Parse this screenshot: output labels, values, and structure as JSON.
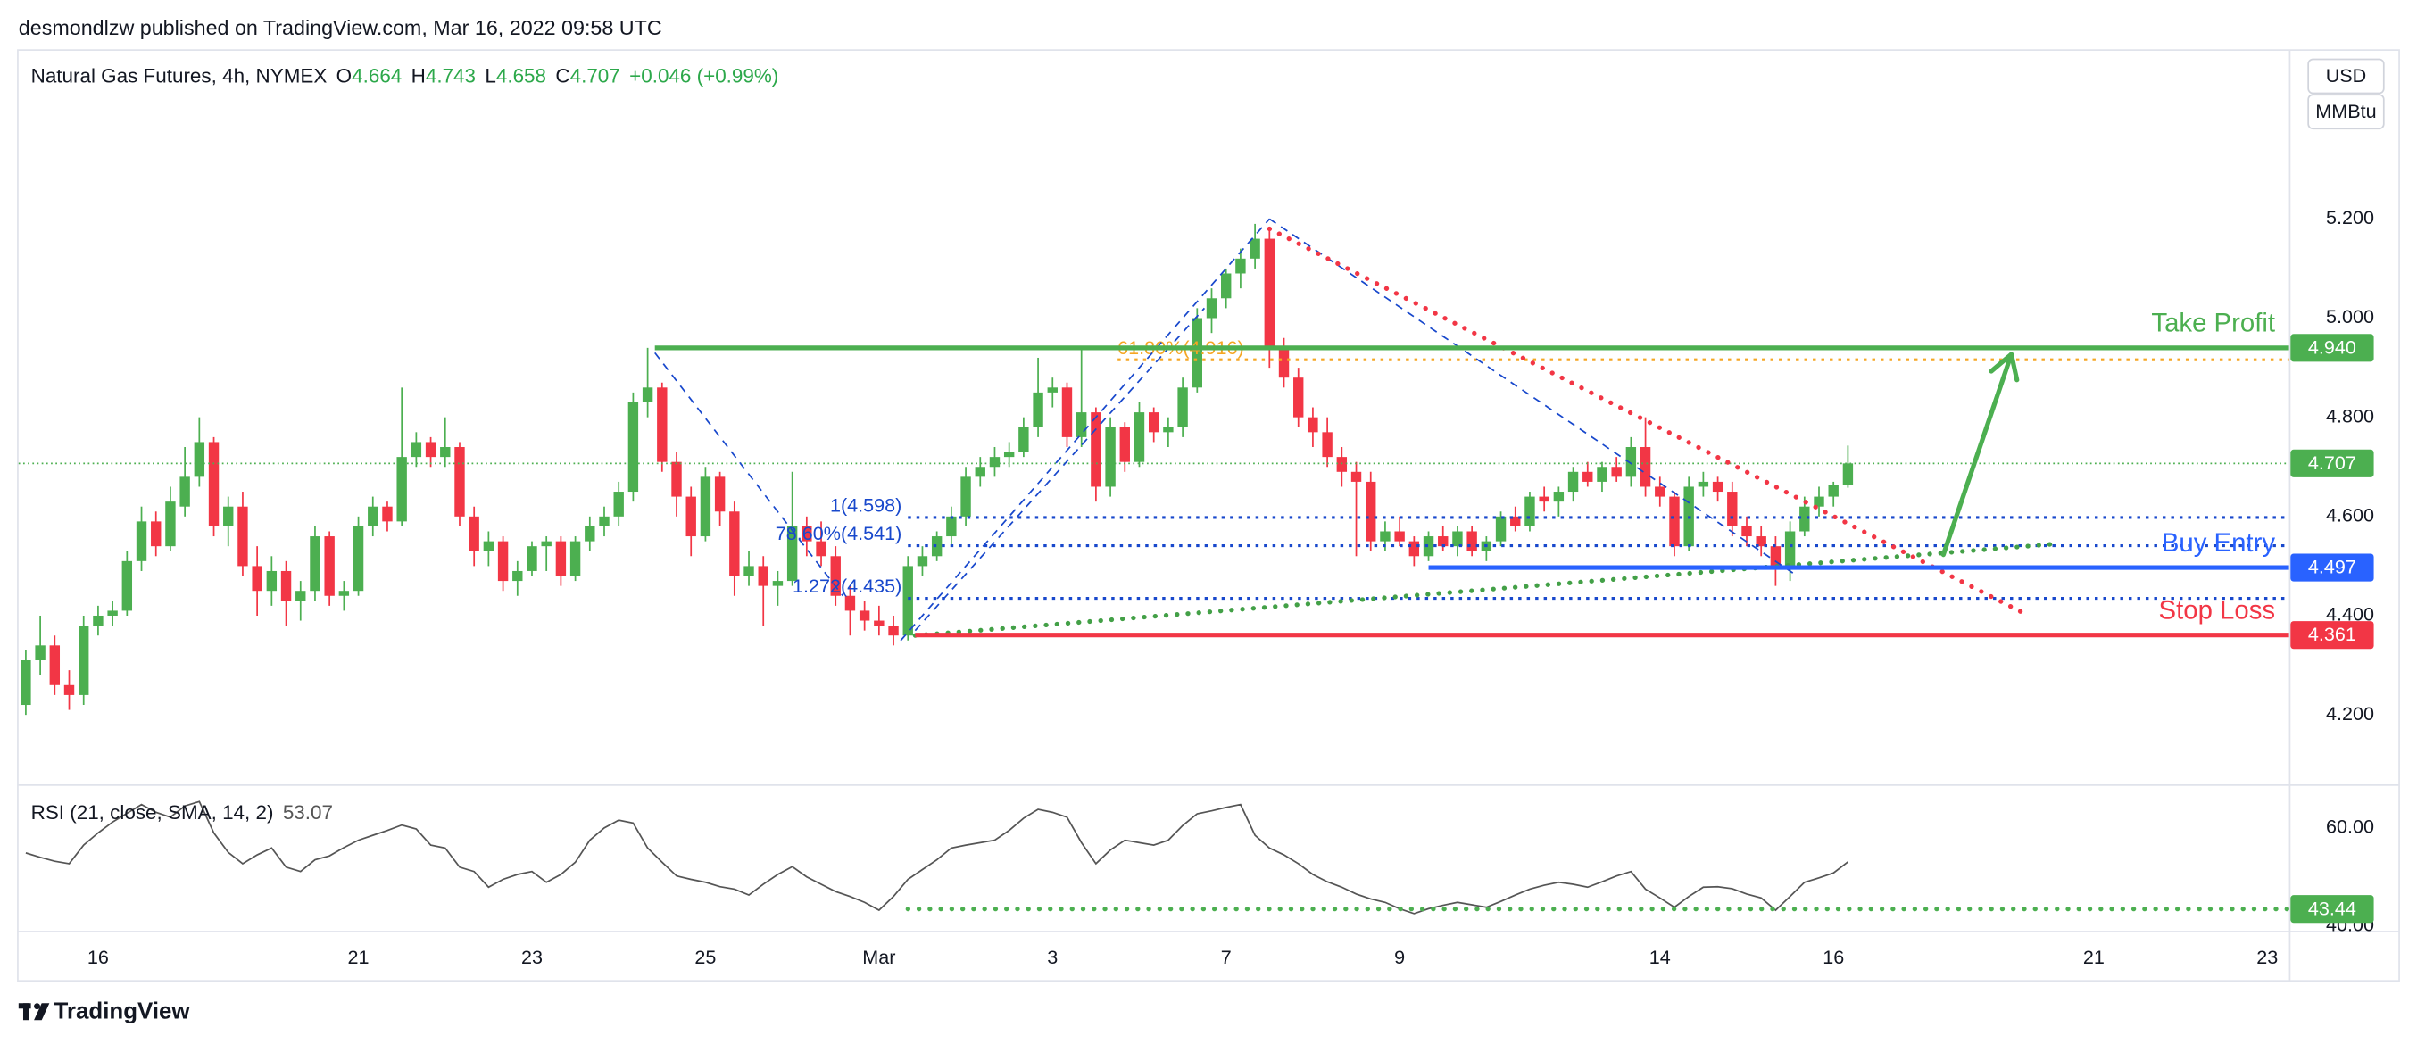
{
  "header": {
    "published": "desmondlzw published on TradingView.com, Mar 16, 2022 09:58 UTC"
  },
  "chart_data": {
    "type": "candlestick",
    "title": "Natural Gas Futures, 4h, NYMEX",
    "ohlc_labels": [
      "O",
      "H",
      "L",
      "C"
    ],
    "change": "+0.046 (+0.99%)",
    "currency": [
      "USD",
      "MMBtu"
    ],
    "up_color": "#4caf50",
    "down_color": "#f23645",
    "categories": [
      null,
      null,
      null,
      null,
      null,
      "16",
      null,
      null,
      null,
      null,
      null,
      null,
      null,
      null,
      null,
      null,
      null,
      null,
      null,
      null,
      null,
      null,
      null,
      "21",
      null,
      null,
      null,
      null,
      null,
      null,
      null,
      null,
      null,
      null,
      null,
      "23",
      null,
      null,
      null,
      null,
      null,
      null,
      null,
      null,
      null,
      null,
      null,
      "25",
      null,
      null,
      null,
      null,
      null,
      null,
      null,
      null,
      null,
      null,
      null,
      "Mar",
      null,
      null,
      null,
      null,
      null,
      null,
      null,
      null,
      null,
      null,
      null,
      "3",
      null,
      null,
      null,
      null,
      null,
      null,
      null,
      null,
      null,
      null,
      null,
      "7",
      null,
      null,
      null,
      null,
      null,
      null,
      null,
      null,
      null,
      null,
      null,
      "9",
      null,
      null,
      null,
      null,
      null,
      null,
      null,
      null,
      null,
      null,
      null,
      null,
      null,
      null,
      null,
      null,
      null,
      "14",
      null,
      null,
      null,
      null,
      null,
      null,
      null,
      null,
      null,
      null,
      null,
      "16",
      null,
      null,
      null,
      null,
      null,
      null,
      null,
      null,
      null,
      null,
      null,
      null,
      null,
      null,
      null,
      null,
      null,
      "21",
      null,
      null,
      null,
      null,
      null,
      null,
      null,
      null,
      null,
      null,
      null,
      "23",
      null
    ],
    "ohlc": [
      [
        4.22,
        4.33,
        4.2,
        4.31
      ],
      [
        4.31,
        4.4,
        4.28,
        4.34
      ],
      [
        4.34,
        4.36,
        4.24,
        4.26
      ],
      [
        4.26,
        4.29,
        4.21,
        4.24
      ],
      [
        4.24,
        4.4,
        4.22,
        4.38
      ],
      [
        4.38,
        4.42,
        4.36,
        4.4
      ],
      [
        4.4,
        4.43,
        4.38,
        4.41
      ],
      [
        4.41,
        4.53,
        4.4,
        4.51
      ],
      [
        4.51,
        4.62,
        4.49,
        4.59
      ],
      [
        4.59,
        4.61,
        4.52,
        4.54
      ],
      [
        4.54,
        4.66,
        4.53,
        4.63
      ],
      [
        4.62,
        4.74,
        4.6,
        4.68
      ],
      [
        4.68,
        4.8,
        4.66,
        4.75
      ],
      [
        4.75,
        4.76,
        4.56,
        4.58
      ],
      [
        4.58,
        4.64,
        4.54,
        4.62
      ],
      [
        4.62,
        4.65,
        4.48,
        4.5
      ],
      [
        4.5,
        4.54,
        4.4,
        4.45
      ],
      [
        4.45,
        4.52,
        4.42,
        4.49
      ],
      [
        4.49,
        4.51,
        4.38,
        4.43
      ],
      [
        4.43,
        4.47,
        4.39,
        4.45
      ],
      [
        4.45,
        4.58,
        4.43,
        4.56
      ],
      [
        4.56,
        4.57,
        4.42,
        4.44
      ],
      [
        4.44,
        4.47,
        4.41,
        4.45
      ],
      [
        4.45,
        4.6,
        4.44,
        4.58
      ],
      [
        4.58,
        4.64,
        4.56,
        4.62
      ],
      [
        4.62,
        4.63,
        4.57,
        4.59
      ],
      [
        4.59,
        4.86,
        4.58,
        4.72
      ],
      [
        4.72,
        4.77,
        4.7,
        4.75
      ],
      [
        4.75,
        4.76,
        4.7,
        4.72
      ],
      [
        4.72,
        4.8,
        4.7,
        4.74
      ],
      [
        4.74,
        4.75,
        4.58,
        4.6
      ],
      [
        4.6,
        4.62,
        4.5,
        4.53
      ],
      [
        4.53,
        4.57,
        4.5,
        4.55
      ],
      [
        4.55,
        4.56,
        4.45,
        4.47
      ],
      [
        4.47,
        4.51,
        4.44,
        4.49
      ],
      [
        4.49,
        4.55,
        4.48,
        4.54
      ],
      [
        4.54,
        4.56,
        4.49,
        4.55
      ],
      [
        4.55,
        4.56,
        4.46,
        4.48
      ],
      [
        4.48,
        4.56,
        4.47,
        4.55
      ],
      [
        4.55,
        4.6,
        4.53,
        4.58
      ],
      [
        4.58,
        4.62,
        4.56,
        4.6
      ],
      [
        4.6,
        4.67,
        4.58,
        4.65
      ],
      [
        4.65,
        4.85,
        4.63,
        4.83
      ],
      [
        4.83,
        4.94,
        4.8,
        4.86
      ],
      [
        4.86,
        4.87,
        4.69,
        4.71
      ],
      [
        4.71,
        4.73,
        4.6,
        4.64
      ],
      [
        4.64,
        4.66,
        4.52,
        4.56
      ],
      [
        4.56,
        4.7,
        4.55,
        4.68
      ],
      [
        4.68,
        4.69,
        4.58,
        4.61
      ],
      [
        4.61,
        4.63,
        4.44,
        4.48
      ],
      [
        4.48,
        4.53,
        4.46,
        4.5
      ],
      [
        4.5,
        4.52,
        4.38,
        4.46
      ],
      [
        4.46,
        4.49,
        4.42,
        4.47
      ],
      [
        4.47,
        4.69,
        4.46,
        4.58
      ],
      [
        4.58,
        4.6,
        4.52,
        4.55
      ],
      [
        4.55,
        4.59,
        4.5,
        4.52
      ],
      [
        4.52,
        4.54,
        4.42,
        4.44
      ],
      [
        4.44,
        4.46,
        4.36,
        4.41
      ],
      [
        4.41,
        4.43,
        4.37,
        4.39
      ],
      [
        4.39,
        4.42,
        4.36,
        4.38
      ],
      [
        4.38,
        4.4,
        4.34,
        4.36
      ],
      [
        4.36,
        4.52,
        4.35,
        4.5
      ],
      [
        4.5,
        4.54,
        4.48,
        4.52
      ],
      [
        4.52,
        4.57,
        4.51,
        4.56
      ],
      [
        4.56,
        4.62,
        4.54,
        4.6
      ],
      [
        4.6,
        4.7,
        4.58,
        4.68
      ],
      [
        4.68,
        4.72,
        4.66,
        4.7
      ],
      [
        4.7,
        4.74,
        4.68,
        4.72
      ],
      [
        4.72,
        4.75,
        4.7,
        4.73
      ],
      [
        4.73,
        4.8,
        4.72,
        4.78
      ],
      [
        4.78,
        4.92,
        4.76,
        4.85
      ],
      [
        4.85,
        4.88,
        4.82,
        4.86
      ],
      [
        4.86,
        4.87,
        4.74,
        4.76
      ],
      [
        4.76,
        4.94,
        4.74,
        4.81
      ],
      [
        4.81,
        4.82,
        4.63,
        4.66
      ],
      [
        4.66,
        4.8,
        4.64,
        4.78
      ],
      [
        4.78,
        4.79,
        4.69,
        4.71
      ],
      [
        4.71,
        4.83,
        4.7,
        4.81
      ],
      [
        4.81,
        4.82,
        4.75,
        4.77
      ],
      [
        4.77,
        4.8,
        4.74,
        4.78
      ],
      [
        4.78,
        4.88,
        4.76,
        4.86
      ],
      [
        4.86,
        5.02,
        4.85,
        5.0
      ],
      [
        5.0,
        5.06,
        4.97,
        5.04
      ],
      [
        5.04,
        5.1,
        5.02,
        5.09
      ],
      [
        5.09,
        5.14,
        5.06,
        5.12
      ],
      [
        5.12,
        5.19,
        5.1,
        5.16
      ],
      [
        5.16,
        5.18,
        4.9,
        4.94
      ],
      [
        4.94,
        4.96,
        4.86,
        4.88
      ],
      [
        4.88,
        4.9,
        4.78,
        4.8
      ],
      [
        4.8,
        4.82,
        4.74,
        4.77
      ],
      [
        4.77,
        4.8,
        4.7,
        4.72
      ],
      [
        4.72,
        4.74,
        4.66,
        4.69
      ],
      [
        4.69,
        4.71,
        4.52,
        4.67
      ],
      [
        4.67,
        4.69,
        4.53,
        4.55
      ],
      [
        4.55,
        4.59,
        4.53,
        4.57
      ],
      [
        4.57,
        4.6,
        4.54,
        4.55
      ],
      [
        4.55,
        4.56,
        4.5,
        4.52
      ],
      [
        4.52,
        4.57,
        4.51,
        4.56
      ],
      [
        4.56,
        4.58,
        4.53,
        4.54
      ],
      [
        4.54,
        4.58,
        4.52,
        4.57
      ],
      [
        4.57,
        4.58,
        4.52,
        4.53
      ],
      [
        4.53,
        4.56,
        4.51,
        4.55
      ],
      [
        4.55,
        4.61,
        4.54,
        4.6
      ],
      [
        4.6,
        4.62,
        4.57,
        4.58
      ],
      [
        4.58,
        4.65,
        4.57,
        4.64
      ],
      [
        4.64,
        4.66,
        4.61,
        4.63
      ],
      [
        4.63,
        4.66,
        4.6,
        4.65
      ],
      [
        4.65,
        4.7,
        4.63,
        4.69
      ],
      [
        4.69,
        4.71,
        4.66,
        4.67
      ],
      [
        4.67,
        4.71,
        4.65,
        4.7
      ],
      [
        4.7,
        4.72,
        4.67,
        4.68
      ],
      [
        4.68,
        4.76,
        4.66,
        4.74
      ],
      [
        4.74,
        4.8,
        4.64,
        4.66
      ],
      [
        4.66,
        4.68,
        4.62,
        4.64
      ],
      [
        4.64,
        4.65,
        4.52,
        4.54
      ],
      [
        4.54,
        4.68,
        4.53,
        4.66
      ],
      [
        4.66,
        4.69,
        4.64,
        4.67
      ],
      [
        4.67,
        4.68,
        4.63,
        4.65
      ],
      [
        4.65,
        4.67,
        4.56,
        4.58
      ],
      [
        4.58,
        4.6,
        4.54,
        4.56
      ],
      [
        4.56,
        4.58,
        4.52,
        4.54
      ],
      [
        4.54,
        4.56,
        4.46,
        4.5
      ],
      [
        4.5,
        4.59,
        4.47,
        4.57
      ],
      [
        4.57,
        4.64,
        4.56,
        4.62
      ],
      [
        4.62,
        4.66,
        4.6,
        4.64
      ],
      [
        4.64,
        4.67,
        4.62,
        4.664
      ],
      [
        4.664,
        4.743,
        4.658,
        4.707
      ],
      null,
      null,
      null,
      null,
      null,
      null,
      null,
      null,
      null,
      null,
      null,
      null,
      null,
      null,
      null,
      null,
      null,
      null,
      null,
      null,
      null,
      null,
      null,
      null,
      null,
      null,
      null,
      null,
      null,
      null
    ],
    "ylim": [
      4.063,
      5.542
    ],
    "yticks": [
      {
        "value": 4.2,
        "label": "4.200"
      },
      {
        "value": 4.4,
        "label": "4.400"
      },
      {
        "value": 4.6,
        "label": "4.600"
      },
      {
        "value": 4.8,
        "label": "4.800"
      },
      {
        "value": 5.0,
        "label": "5.000"
      },
      {
        "value": 5.2,
        "label": "5.200"
      }
    ],
    "levels": [
      {
        "name": "Take Profit",
        "value": 4.94,
        "value_label": "4.940",
        "color": "#4caf50",
        "start": 43.5
      },
      {
        "name": "Buy Entry",
        "value": 4.497,
        "value_label": "4.497",
        "color": "#2962ff",
        "start": 97
      },
      {
        "name": "Stop Loss",
        "value": 4.361,
        "value_label": "4.361",
        "color": "#f23645",
        "start": 61.5
      }
    ],
    "fib_levels": [
      {
        "label": "61.80%(4.916)",
        "value": 4.916,
        "color": "#f5a623",
        "start": 75.5
      },
      {
        "label": "1(4.598)",
        "value": 4.598,
        "color": "#1848cc",
        "start": 61
      },
      {
        "label": "78.60%(4.541)",
        "value": 4.541,
        "color": "#1848cc",
        "start": 61
      },
      {
        "label": "1.272(4.435)",
        "value": 4.435,
        "color": "#1848cc",
        "start": 61
      }
    ],
    "drawings": [
      {
        "style": "dashed",
        "color": "#1848cc",
        "points": [
          [
            43.5,
            4.93
          ],
          [
            56.5,
            4.44
          ]
        ]
      },
      {
        "style": "dashed",
        "color": "#1848cc",
        "points": [
          [
            60.5,
            4.35
          ],
          [
            86,
            5.2
          ]
        ]
      },
      {
        "style": "dashed",
        "color": "#1848cc",
        "points": [
          [
            61.5,
            4.37
          ],
          [
            81.5,
            5.02
          ]
        ]
      },
      {
        "style": "dashed",
        "color": "#1848cc",
        "points": [
          [
            86,
            5.2
          ],
          [
            122.5,
            4.48
          ]
        ]
      },
      {
        "style": "dotted",
        "color": "#43a047",
        "points": [
          [
            61.5,
            4.36
          ],
          [
            140.5,
            4.545
          ]
        ]
      },
      {
        "style": "dotted",
        "color": "#f23645",
        "points": [
          [
            86,
            5.18
          ],
          [
            138.5,
            4.4
          ]
        ]
      },
      {
        "style": "arrow",
        "color": "#4caf50",
        "points": [
          [
            132.6,
            4.523
          ],
          [
            137.3,
            4.927
          ]
        ]
      }
    ],
    "indicator": {
      "name": "RSI (21, close, SMA, 14, 2)",
      "color": "#555555",
      "ylim": [
        39,
        68.6
      ],
      "yticks": [
        {
          "value": 60,
          "label": "60.00"
        },
        {
          "value": 40,
          "label": "40.00"
        }
      ],
      "level": {
        "value": 43.44,
        "color": "#4caf50",
        "start": 61
      },
      "values": [
        54.9,
        54.0,
        53.2,
        52.7,
        56.5,
        59.0,
        61.2,
        63.0,
        64.8,
        63.2,
        62.2,
        64.5,
        65.4,
        59.0,
        55.0,
        52.7,
        54.5,
        55.9,
        52.0,
        51.1,
        53.5,
        54.3,
        56.0,
        57.5,
        58.5,
        59.5,
        60.6,
        59.8,
        56.5,
        55.9,
        52.0,
        51.1,
        47.9,
        49.5,
        50.5,
        51.1,
        48.9,
        50.5,
        53.0,
        57.5,
        60.0,
        61.6,
        61.0,
        55.9,
        53.0,
        50.2,
        49.5,
        48.9,
        48.0,
        47.5,
        46.3,
        48.5,
        50.5,
        52.1,
        50.0,
        48.5,
        47.0,
        46.0,
        44.8,
        43.2,
        46.0,
        49.5,
        51.5,
        53.5,
        55.9,
        56.5,
        57.0,
        57.5,
        59.5,
        62.0,
        63.8,
        63.2,
        62.2,
        57.0,
        52.7,
        55.5,
        57.5,
        57.0,
        56.5,
        57.5,
        60.5,
        62.9,
        63.5,
        64.2,
        64.8,
        58.5,
        55.9,
        54.5,
        52.7,
        50.5,
        49.0,
        47.9,
        46.5,
        45.5,
        44.8,
        43.5,
        42.5,
        43.5,
        44.2,
        44.8,
        44.3,
        43.8,
        45.0,
        46.3,
        47.5,
        48.3,
        48.9,
        48.5,
        47.9,
        49.0,
        50.2,
        51.1,
        47.5,
        45.7,
        43.8,
        46.0,
        47.9,
        48.0,
        47.6,
        46.5,
        45.7,
        43.2,
        46.0,
        48.9,
        49.8,
        50.8,
        53.07,
        null,
        null,
        null,
        null,
        null,
        null,
        null,
        null,
        null,
        null,
        null,
        null,
        null,
        null,
        null,
        null,
        null,
        null,
        null,
        null,
        null,
        null,
        null,
        null,
        null,
        null,
        null,
        null,
        null,
        null
      ]
    }
  },
  "footer": {
    "brand": "TradingView"
  }
}
